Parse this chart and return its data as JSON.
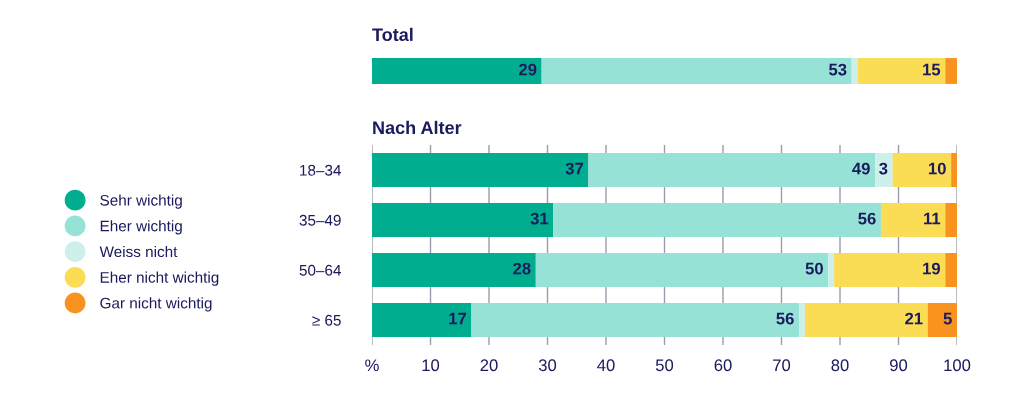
{
  "chart_data": [
    {
      "type": "bar",
      "title": "Total",
      "orientation": "horizontal",
      "stacked": true,
      "categories": [
        null
      ],
      "xlim": [
        0,
        100
      ],
      "grid": false,
      "series": [
        {
          "color": "#00ae8f",
          "values": [
            29
          ],
          "value_labels": [
            "29"
          ]
        },
        {
          "color": "#97e2d6",
          "values": [
            53
          ],
          "value_labels": [
            "53"
          ]
        },
        {
          "color": "#cdf0ea",
          "values": [
            1
          ],
          "value_labels": [
            null
          ]
        },
        {
          "color": "#fbdc55",
          "values": [
            15
          ],
          "value_labels": [
            "15"
          ]
        },
        {
          "color": "#f7931e",
          "values": [
            2
          ],
          "value_labels": [
            null
          ]
        }
      ]
    },
    {
      "type": "bar",
      "title": "Nach Alter",
      "orientation": "horizontal",
      "stacked": true,
      "categories": [
        "18–34",
        "35–49",
        "50–64",
        "≥ 65"
      ],
      "xlim": [
        0,
        100
      ],
      "xticks": [
        {
          "value": 0,
          "label": "%"
        },
        10,
        20,
        30,
        40,
        50,
        60,
        70,
        80,
        90,
        100
      ],
      "grid": "x",
      "legend": "left",
      "series": [
        {
          "name": "Sehr wichtig",
          "color": "#00ae8f",
          "values": [
            37,
            31,
            28,
            17
          ],
          "value_labels": [
            "37",
            "31",
            "28",
            "17"
          ]
        },
        {
          "name": "Eher wichtig",
          "color": "#97e2d6",
          "values": [
            49,
            56,
            50,
            56
          ],
          "value_labels": [
            "49",
            "56",
            "50",
            "56"
          ]
        },
        {
          "name": "Weiss nicht",
          "color": "#cdf0ea",
          "values": [
            3,
            0,
            1,
            1
          ],
          "value_labels": [
            "3",
            null,
            null,
            null
          ]
        },
        {
          "name": "Eher nicht wichtig",
          "color": "#fbdc55",
          "values": [
            10,
            11,
            19,
            21
          ],
          "value_labels": [
            "10",
            "11",
            "19",
            "21"
          ]
        },
        {
          "name": "Gar nicht wichtig",
          "color": "#f7931e",
          "values": [
            1,
            2,
            2,
            5
          ],
          "value_labels": [
            null,
            null,
            null,
            "5"
          ]
        }
      ]
    }
  ]
}
